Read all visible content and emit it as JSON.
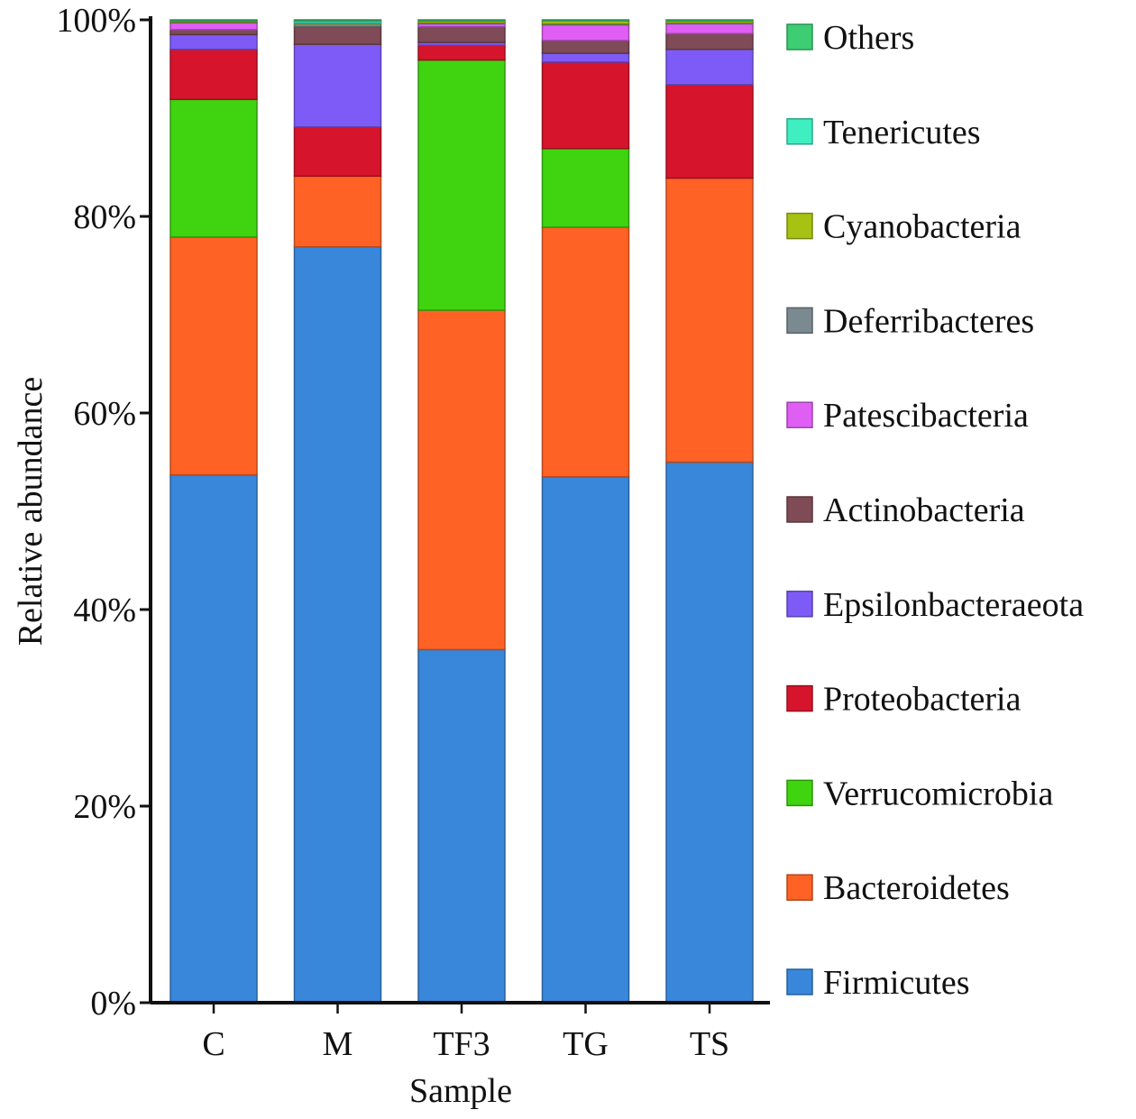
{
  "chart_data": {
    "type": "bar",
    "stacked": true,
    "normalized": true,
    "title": "",
    "xlabel": "Sample",
    "ylabel": "Relative abundance",
    "ylim": [
      0,
      100
    ],
    "yticks": [
      "0%",
      "20%",
      "40%",
      "60%",
      "80%",
      "100%"
    ],
    "grid": false,
    "legend_position": "right",
    "categories": [
      "C",
      "M",
      "TF3",
      "TG",
      "TS"
    ],
    "series": [
      {
        "name": "Firmicutes",
        "color": "#3887DB",
        "values": [
          53.7,
          76.9,
          36.0,
          53.5,
          55.0
        ]
      },
      {
        "name": "Bacteroidetes",
        "color": "#FF6224",
        "values": [
          24.2,
          7.2,
          34.6,
          25.4,
          28.9
        ]
      },
      {
        "name": "Verrucomicrobia",
        "color": "#3FD40F",
        "values": [
          14.0,
          0.0,
          25.5,
          8.0,
          0.0
        ]
      },
      {
        "name": "Proteobacteria",
        "color": "#D6152C",
        "values": [
          5.1,
          5.0,
          1.5,
          8.8,
          9.5
        ]
      },
      {
        "name": "Epsilonbacteraeota",
        "color": "#7E5BF7",
        "values": [
          1.5,
          8.4,
          0.3,
          0.9,
          3.6
        ]
      },
      {
        "name": "Actinobacteria",
        "color": "#7E4B56",
        "values": [
          0.5,
          1.8,
          1.6,
          1.3,
          1.6
        ]
      },
      {
        "name": "Patescibacteria",
        "color": "#DF5FF5",
        "values": [
          0.7,
          0.0,
          0.3,
          1.6,
          1.0
        ]
      },
      {
        "name": "Deferribacteres",
        "color": "#7B8A91",
        "values": [
          0.1,
          0.3,
          0.1,
          0.1,
          0.1
        ]
      },
      {
        "name": "Cyanobacteria",
        "color": "#A8C213",
        "values": [
          0.1,
          0.1,
          0.2,
          0.3,
          0.2
        ]
      },
      {
        "name": "Tenericutes",
        "color": "#3FEFC1",
        "values": [
          0.0,
          0.2,
          0.0,
          0.0,
          0.0
        ]
      },
      {
        "name": "Others",
        "color": "#3DCD73",
        "values": [
          0.1,
          0.1,
          0.1,
          0.1,
          0.1
        ]
      }
    ]
  }
}
